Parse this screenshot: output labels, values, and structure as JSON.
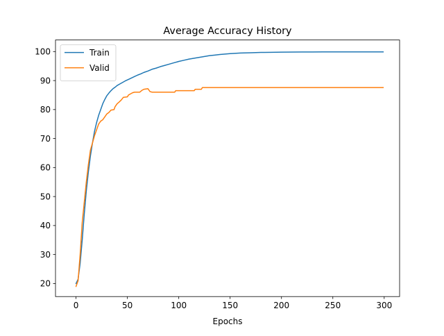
{
  "chart_data": {
    "type": "line",
    "title": "Average Accuracy History",
    "xlabel": "Epochs",
    "ylabel": "",
    "xlim": [
      -20,
      315
    ],
    "ylim": [
      15.5,
      104
    ],
    "x_ticks": [
      0,
      50,
      100,
      150,
      200,
      250,
      300
    ],
    "y_ticks": [
      20,
      30,
      40,
      50,
      60,
      70,
      80,
      90,
      100
    ],
    "grid": false,
    "legend_position": "top-left",
    "series": [
      {
        "name": "Train",
        "color": "#1f77b4",
        "points": [
          [
            0,
            20.0
          ],
          [
            2,
            21.5
          ],
          [
            4,
            27.0
          ],
          [
            6,
            35.0
          ],
          [
            8,
            44.0
          ],
          [
            10,
            52.0
          ],
          [
            12,
            58.5
          ],
          [
            14,
            64.0
          ],
          [
            16,
            68.5
          ],
          [
            18,
            72.5
          ],
          [
            20,
            75.5
          ],
          [
            22,
            78.0
          ],
          [
            24,
            80.0
          ],
          [
            26,
            82.0
          ],
          [
            28,
            83.5
          ],
          [
            30,
            84.8
          ],
          [
            32,
            85.7
          ],
          [
            34,
            86.5
          ],
          [
            36,
            87.2
          ],
          [
            38,
            87.7
          ],
          [
            40,
            88.3
          ],
          [
            42,
            88.7
          ],
          [
            45,
            89.3
          ],
          [
            48,
            89.9
          ],
          [
            51,
            90.4
          ],
          [
            54,
            90.9
          ],
          [
            57,
            91.4
          ],
          [
            60,
            91.9
          ],
          [
            63,
            92.3
          ],
          [
            66,
            92.8
          ],
          [
            70,
            93.3
          ],
          [
            74,
            93.9
          ],
          [
            78,
            94.3
          ],
          [
            82,
            94.8
          ],
          [
            86,
            95.2
          ],
          [
            90,
            95.6
          ],
          [
            95,
            96.1
          ],
          [
            100,
            96.6
          ],
          [
            105,
            97.0
          ],
          [
            110,
            97.4
          ],
          [
            115,
            97.7
          ],
          [
            120,
            98.0
          ],
          [
            125,
            98.3
          ],
          [
            130,
            98.6
          ],
          [
            135,
            98.8
          ],
          [
            140,
            99.0
          ],
          [
            145,
            99.15
          ],
          [
            150,
            99.3
          ],
          [
            160,
            99.5
          ],
          [
            170,
            99.6
          ],
          [
            180,
            99.7
          ],
          [
            190,
            99.75
          ],
          [
            200,
            99.8
          ],
          [
            210,
            99.82
          ],
          [
            220,
            99.85
          ],
          [
            230,
            99.87
          ],
          [
            240,
            99.88
          ],
          [
            250,
            99.9
          ],
          [
            260,
            99.9
          ],
          [
            270,
            99.9
          ],
          [
            280,
            99.9
          ],
          [
            290,
            99.88
          ],
          [
            299,
            99.9
          ]
        ]
      },
      {
        "name": "Valid",
        "color": "#ff7f0e",
        "points": [
          [
            0,
            19.0
          ],
          [
            2,
            21.0
          ],
          [
            4,
            30.0
          ],
          [
            6,
            41.0
          ],
          [
            8,
            48.0
          ],
          [
            10,
            55.0
          ],
          [
            12,
            61.0
          ],
          [
            14,
            66.0
          ],
          [
            16,
            68.5
          ],
          [
            18,
            71.0
          ],
          [
            20,
            73.0
          ],
          [
            22,
            75.0
          ],
          [
            24,
            76.0
          ],
          [
            26,
            76.5
          ],
          [
            28,
            77.5
          ],
          [
            30,
            78.5
          ],
          [
            32,
            79.0
          ],
          [
            34,
            79.8
          ],
          [
            37,
            80.0
          ],
          [
            38,
            81.0
          ],
          [
            40,
            82.0
          ],
          [
            42,
            82.6
          ],
          [
            44,
            83.3
          ],
          [
            46,
            84.2
          ],
          [
            50,
            84.4
          ],
          [
            51,
            85.0
          ],
          [
            53,
            85.4
          ],
          [
            55,
            85.8
          ],
          [
            57,
            86.0
          ],
          [
            62,
            86.0
          ],
          [
            64,
            86.6
          ],
          [
            66,
            87.0
          ],
          [
            70,
            87.2
          ],
          [
            72,
            86.2
          ],
          [
            74,
            86.0
          ],
          [
            96,
            86.0
          ],
          [
            97,
            86.5
          ],
          [
            115,
            86.5
          ],
          [
            116,
            87.0
          ],
          [
            122,
            87.0
          ],
          [
            123,
            87.6
          ],
          [
            299,
            87.6
          ]
        ]
      }
    ]
  }
}
